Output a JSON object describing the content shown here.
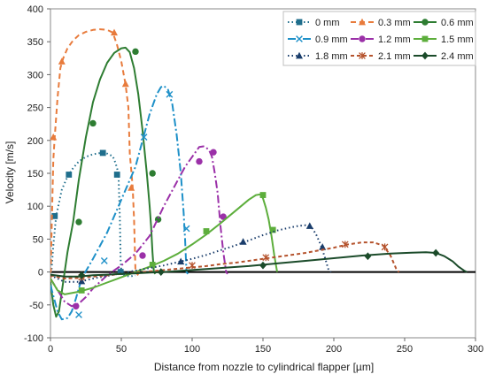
{
  "chart_data": {
    "type": "line",
    "title": "",
    "xlabel": "Distance from nozzle to cylindrical flapper [µm]",
    "ylabel": "Velocity [m/s]",
    "xlim": [
      0,
      300
    ],
    "ylim": [
      -100,
      400
    ],
    "xticks": [
      0,
      50,
      100,
      150,
      200,
      250,
      300
    ],
    "yticks": [
      -100,
      -50,
      0,
      50,
      100,
      150,
      200,
      250,
      300,
      350,
      400
    ],
    "grid": false,
    "legend": "top-right",
    "series": [
      {
        "name": "0 mm",
        "color": "#1F6E8C",
        "dash": "1.5,3",
        "marker": "square",
        "x": [
          0,
          2,
          4,
          8,
          12,
          16,
          20,
          25,
          30,
          36,
          40,
          44,
          46,
          48,
          49,
          49.5,
          50,
          52,
          56,
          60
        ],
        "y": [
          -20,
          40,
          85,
          125,
          145,
          158,
          168,
          175,
          179,
          181,
          180,
          176,
          165,
          150,
          80,
          20,
          0,
          -5,
          -7,
          -5
        ],
        "markers": [
          [
            3,
            85
          ],
          [
            13,
            148
          ],
          [
            37,
            181
          ],
          [
            47,
            148
          ],
          [
            49.5,
            0
          ]
        ]
      },
      {
        "name": "0.3 mm",
        "color": "#E87B3C",
        "dash": "6,4",
        "marker": "triangle",
        "x": [
          0,
          1,
          2,
          3,
          5,
          7,
          9,
          12,
          16,
          20,
          25,
          30,
          35,
          40,
          44,
          47,
          50,
          53,
          55,
          56,
          58,
          59,
          60,
          62
        ],
        "y": [
          -15,
          80,
          170,
          205,
          265,
          310,
          325,
          340,
          352,
          360,
          365,
          368,
          369,
          368,
          364,
          345,
          320,
          285,
          250,
          180,
          130,
          80,
          0,
          -5
        ],
        "markers": [
          [
            2,
            205
          ],
          [
            8,
            320
          ],
          [
            45,
            364
          ],
          [
            53,
            286
          ],
          [
            57,
            128
          ]
        ]
      },
      {
        "name": "0.6 mm",
        "color": "#2E7D32",
        "dash": "",
        "marker": "circle",
        "x": [
          0,
          2,
          4,
          6,
          8,
          10,
          12,
          16,
          20,
          25,
          30,
          35,
          40,
          45,
          50,
          53,
          56,
          59,
          62,
          65,
          68,
          70,
          71,
          72,
          73,
          74
        ],
        "y": [
          -15,
          -50,
          -68,
          -60,
          -30,
          0,
          30,
          76,
          140,
          205,
          258,
          293,
          318,
          333,
          340,
          341,
          334,
          310,
          270,
          215,
          150,
          100,
          70,
          30,
          0,
          -3
        ],
        "markers": [
          [
            20,
            76
          ],
          [
            30,
            226
          ],
          [
            60,
            335
          ],
          [
            72,
            150
          ],
          [
            76,
            80
          ]
        ]
      },
      {
        "name": "0.9 mm",
        "color": "#1E90C8",
        "dash": "9,3,2,3",
        "marker": "x",
        "x": [
          0,
          5,
          8,
          12,
          15,
          18,
          22,
          30,
          40,
          50,
          60,
          65,
          70,
          75,
          78,
          80,
          83,
          86,
          89,
          92,
          94,
          95,
          96,
          97
        ],
        "y": [
          -20,
          -60,
          -72,
          -70,
          -60,
          -40,
          -10,
          20,
          60,
          110,
          160,
          200,
          240,
          270,
          281,
          283,
          277,
          255,
          210,
          150,
          90,
          50,
          0,
          -3
        ],
        "markers": [
          [
            20,
            -65
          ],
          [
            38,
            17
          ],
          [
            66,
            205
          ],
          [
            84,
            270
          ],
          [
            96,
            66
          ]
        ]
      },
      {
        "name": "1.2 mm",
        "color": "#9B30A8",
        "dash": "9,3,2,3",
        "marker": "circle",
        "x": [
          0,
          10,
          15,
          20,
          25,
          30,
          40,
          50,
          60,
          70,
          80,
          85,
          90,
          95,
          100,
          105,
          108,
          110,
          112,
          114,
          116,
          118,
          120,
          122,
          124,
          125
        ],
        "y": [
          -10,
          -45,
          -52,
          -48,
          -38,
          -25,
          -5,
          10,
          28,
          55,
          100,
          120,
          140,
          160,
          175,
          190,
          191,
          189,
          185,
          175,
          150,
          120,
          70,
          30,
          0,
          -3
        ],
        "markers": [
          [
            18,
            -52
          ],
          [
            65,
            25
          ],
          [
            105,
            168
          ],
          [
            115,
            182
          ],
          [
            122,
            84
          ]
        ]
      },
      {
        "name": "1.5 mm",
        "color": "#5DAE3C",
        "dash": "",
        "marker": "square",
        "x": [
          0,
          5,
          10,
          15,
          20,
          25,
          30,
          40,
          50,
          60,
          70,
          80,
          90,
          100,
          110,
          120,
          130,
          140,
          145,
          148,
          150,
          152,
          154,
          156,
          158,
          160
        ],
        "y": [
          -10,
          -28,
          -34,
          -32,
          -30,
          -27,
          -24,
          -16,
          -8,
          0,
          8,
          17,
          28,
          42,
          57,
          74,
          92,
          110,
          117,
          118,
          112,
          98,
          80,
          55,
          25,
          0
        ],
        "markers": [
          [
            22,
            -28
          ],
          [
            72,
            11
          ],
          [
            110,
            62
          ],
          [
            150,
            117
          ],
          [
            157,
            64
          ]
        ]
      },
      {
        "name": "1.8 mm",
        "color": "#1A3D6B",
        "dash": "1.5,3",
        "marker": "triangle",
        "x": [
          0,
          10,
          20,
          30,
          40,
          50,
          60,
          70,
          80,
          90,
          100,
          110,
          120,
          130,
          140,
          150,
          160,
          170,
          175,
          180,
          185,
          188,
          191,
          194,
          196,
          198
        ],
        "y": [
          -5,
          -15,
          -15,
          -10,
          -6,
          -2,
          2,
          6,
          10,
          15,
          20,
          26,
          33,
          40,
          48,
          56,
          63,
          68,
          70,
          71,
          66,
          55,
          40,
          20,
          5,
          0
        ],
        "markers": [
          [
            22,
            -14
          ],
          [
            92,
            16
          ],
          [
            136,
            46
          ],
          [
            183,
            70
          ],
          [
            192,
            38
          ]
        ]
      },
      {
        "name": "2.1 mm",
        "color": "#B5532D",
        "dash": "4,3",
        "marker": "star",
        "x": [
          0,
          10,
          20,
          30,
          40,
          50,
          60,
          70,
          80,
          90,
          100,
          110,
          120,
          130,
          140,
          150,
          160,
          170,
          180,
          190,
          200,
          210,
          220,
          228,
          235,
          240,
          244,
          246
        ],
        "y": [
          -5,
          -10,
          -9,
          -7,
          -5,
          -3,
          -1,
          1,
          3,
          5,
          7,
          9,
          12,
          14,
          17,
          20,
          23,
          26,
          29,
          33,
          37,
          42,
          45,
          45,
          40,
          25,
          5,
          0
        ],
        "markers": [
          [
            22,
            -8
          ],
          [
            100,
            10
          ],
          [
            152,
            22
          ],
          [
            208,
            42
          ],
          [
            236,
            38
          ]
        ]
      },
      {
        "name": "2.4 mm",
        "color": "#1B4B2A",
        "dash": "",
        "marker": "diamond",
        "x": [
          0,
          10,
          20,
          30,
          40,
          50,
          60,
          70,
          80,
          100,
          120,
          140,
          160,
          180,
          200,
          220,
          240,
          255,
          265,
          272,
          278,
          284,
          288,
          292,
          294
        ],
        "y": [
          -4,
          -7,
          -7,
          -5,
          -4,
          -3,
          -2,
          -1,
          0,
          3,
          6,
          9,
          13,
          17,
          21,
          25,
          28,
          29.5,
          30,
          29,
          24,
          16,
          8,
          2,
          0
        ],
        "markers": [
          [
            22,
            -5
          ],
          [
            78,
            0
          ],
          [
            150,
            10
          ],
          [
            224,
            24
          ],
          [
            272,
            29
          ]
        ]
      }
    ]
  }
}
